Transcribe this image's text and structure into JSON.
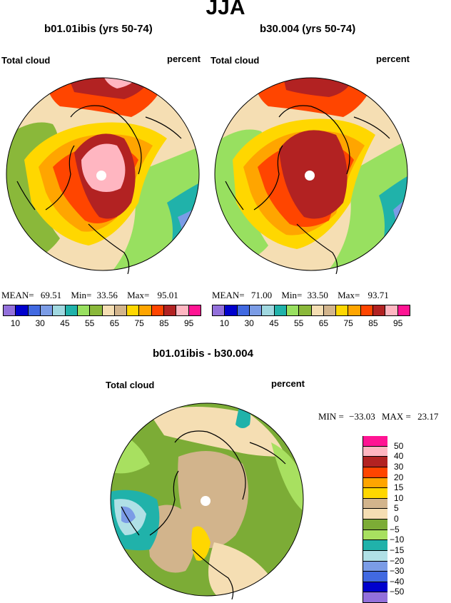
{
  "season": "JJA",
  "panels": [
    {
      "title": "b01.01ibis (yrs 50-74)",
      "variable": "Total cloud",
      "units": "percent",
      "mean_label": "MEAN=",
      "mean": "69.51",
      "min_label": "Min=",
      "min": "33.56",
      "max_label": "Max=",
      "max": "95.01"
    },
    {
      "title": "b30.004 (yrs 50-74)",
      "variable": "Total cloud",
      "units": "percent",
      "mean_label": "MEAN=",
      "mean": "71.00",
      "min_label": "Min=",
      "min": "33.50",
      "max_label": "Max=",
      "max": "93.71"
    }
  ],
  "colorbar_abs": {
    "colors": [
      "#9370db",
      "#0000cd",
      "#4169e1",
      "#7b9ce6",
      "#a0d8e0",
      "#20b2aa",
      "#98e060",
      "#8ab83a",
      "#f5deb3",
      "#d2b48c",
      "#ffd700",
      "#ffa500",
      "#ff4500",
      "#b22222",
      "#ffb6c1",
      "#ff1493"
    ],
    "tick_labels": [
      "10",
      "30",
      "45",
      "55",
      "65",
      "75",
      "85",
      "95"
    ]
  },
  "diff": {
    "title": "b01.01ibis - b30.004",
    "variable": "Total cloud",
    "units": "percent",
    "min_label": "MIN =",
    "min": "−33.03",
    "max_label": "MAX =",
    "max": "23.17"
  },
  "colorbar_diff": {
    "colors": [
      "#ff1493",
      "#ffb6c1",
      "#b22222",
      "#ff4500",
      "#ffa500",
      "#ffd700",
      "#d2b48c",
      "#f5deb3",
      "#7cac36",
      "#a8e060",
      "#20b2aa",
      "#b0e0e6",
      "#7b9ce6",
      "#4169e1",
      "#0000cd",
      "#9370db"
    ],
    "labels": [
      "50",
      "40",
      "30",
      "20",
      "15",
      "10",
      "5",
      "0",
      "−5",
      "−10",
      "−15",
      "−20",
      "−30",
      "−40",
      "−50"
    ]
  }
}
